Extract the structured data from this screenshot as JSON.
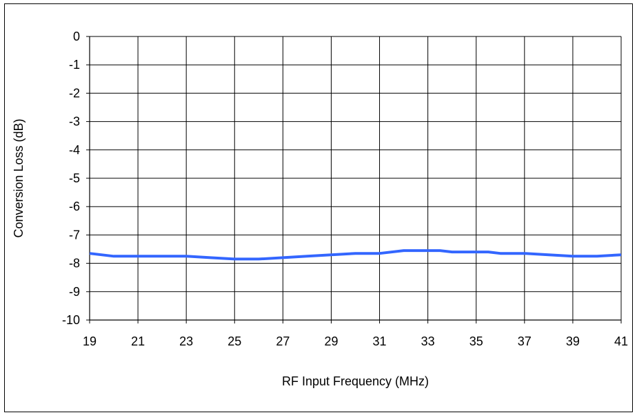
{
  "chart_data": {
    "type": "line",
    "title": "",
    "xlabel": "RF Input Frequency (MHz)",
    "ylabel": "Conversion Loss (dB)",
    "xlim": [
      19,
      41
    ],
    "ylim": [
      -10,
      0
    ],
    "xticks": [
      19,
      21,
      23,
      25,
      27,
      29,
      31,
      33,
      35,
      37,
      39,
      41
    ],
    "yticks": [
      0,
      -1,
      -2,
      -3,
      -4,
      -5,
      -6,
      -7,
      -8,
      -9,
      -10
    ],
    "grid": true,
    "legend": "none",
    "series": [
      {
        "color": "#3366ff",
        "x": [
          19,
          20,
          21,
          22,
          23,
          24,
          25,
          26,
          27,
          28,
          29,
          30,
          31,
          32,
          33,
          33.5,
          34,
          35,
          35.5,
          36,
          37,
          38,
          39,
          40,
          41
        ],
        "y": [
          -7.65,
          -7.75,
          -7.75,
          -7.75,
          -7.75,
          -7.8,
          -7.85,
          -7.85,
          -7.8,
          -7.75,
          -7.7,
          -7.65,
          -7.65,
          -7.55,
          -7.55,
          -7.55,
          -7.6,
          -7.6,
          -7.6,
          -7.65,
          -7.65,
          -7.7,
          -7.75,
          -7.75,
          -7.7
        ]
      }
    ]
  }
}
